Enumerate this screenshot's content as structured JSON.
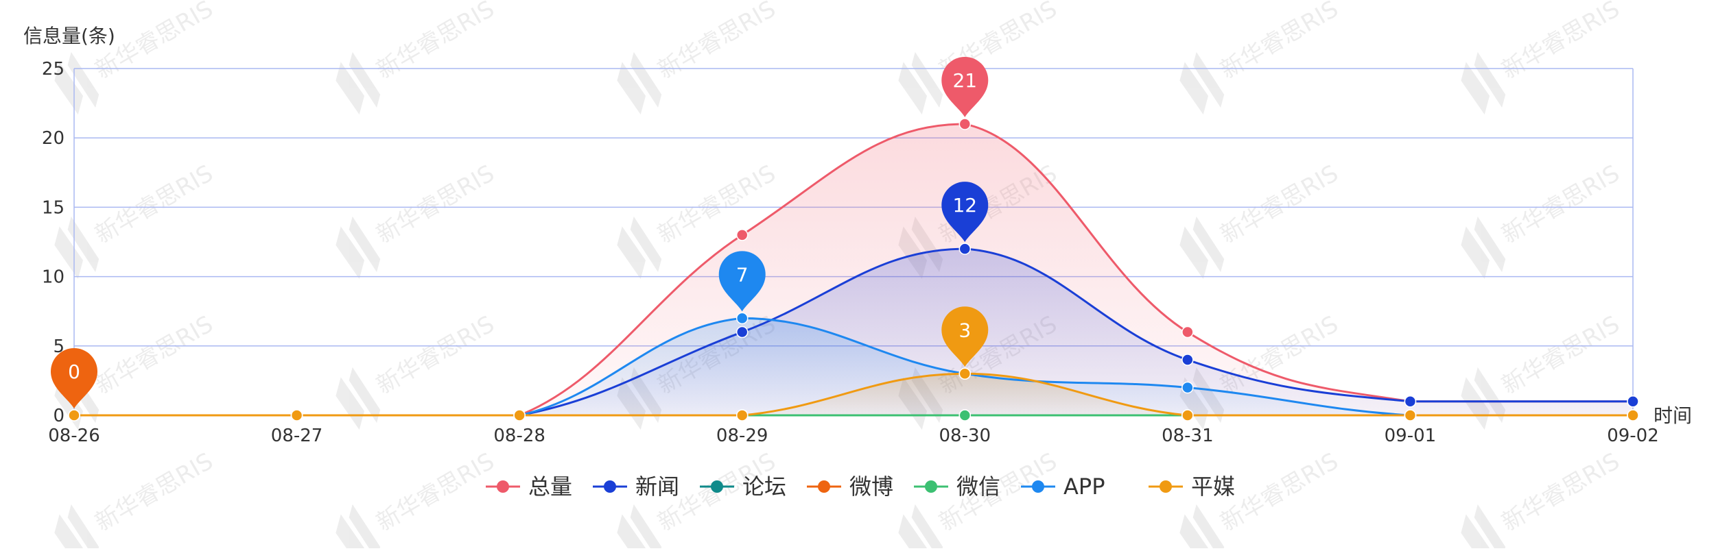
{
  "chart_data": {
    "type": "line",
    "ylabel": "信息量(条)",
    "xlabel": "时间",
    "ylim": [
      0,
      25
    ],
    "yticks": [
      0,
      5,
      10,
      15,
      20,
      25
    ],
    "categories": [
      "08-26",
      "08-27",
      "08-28",
      "08-29",
      "08-30",
      "08-31",
      "09-01",
      "09-02"
    ],
    "grid": true,
    "smooth": true,
    "legend_position": "bottom-center",
    "watermark_text": "新华睿思RIS",
    "series": [
      {
        "name": "总量",
        "color": "#ee5a6a",
        "values": [
          0,
          0,
          0,
          13,
          21,
          6,
          1,
          1
        ],
        "area": true,
        "max_label": 21
      },
      {
        "name": "新闻",
        "color": "#1a3fd6",
        "values": [
          0,
          0,
          0,
          6,
          12,
          4,
          1,
          1
        ],
        "area": true,
        "max_label": 12
      },
      {
        "name": "论坛",
        "color": "#0f8a8a",
        "values": [
          0,
          0,
          0,
          0,
          0,
          0,
          0,
          0
        ],
        "area": false
      },
      {
        "name": "微博",
        "color": "#ee6410",
        "values": [
          0,
          0,
          0,
          0,
          0,
          0,
          0,
          0
        ],
        "area": false,
        "max_label": 0
      },
      {
        "name": "微信",
        "color": "#3cc072",
        "values": [
          0,
          0,
          0,
          0,
          0,
          0,
          0,
          0
        ],
        "area": false
      },
      {
        "name": "APP",
        "color": "#1e88f0",
        "values": [
          0,
          0,
          0,
          7,
          3,
          2,
          0,
          0
        ],
        "area": true,
        "max_label": 7
      },
      {
        "name": "平媒",
        "color": "#f09a12",
        "values": [
          0,
          0,
          0,
          0,
          3,
          0,
          0,
          0
        ],
        "area": true,
        "max_label": 3
      }
    ]
  }
}
